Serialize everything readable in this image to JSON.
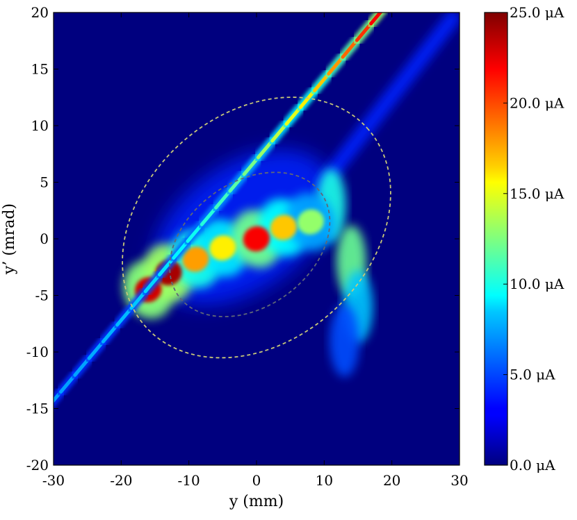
{
  "chart_data": {
    "type": "heatmap",
    "title": "",
    "xlabel": "y (mm)",
    "ylabel": "y’ (mrad)",
    "xlim": [
      -30,
      30
    ],
    "ylim": [
      -20,
      20
    ],
    "x_ticks": [
      "-30",
      "-20",
      "-10",
      "0",
      "10",
      "20",
      "30"
    ],
    "y_ticks": [
      "-20",
      "-15",
      "-10",
      "-5",
      "0",
      "5",
      "10",
      "15",
      "20"
    ],
    "colorbar": {
      "colormap": "jet",
      "range": [
        0,
        25
      ],
      "unit": "μA",
      "tick_labels": [
        "0.0 μA",
        "5.0 μA",
        "10.0 μA",
        "15.0 μA",
        "20.0 μA",
        "25.0 μA"
      ]
    },
    "background_value": 0,
    "features": {
      "steep_line": {
        "from": [
          -31,
          -15
        ],
        "to": [
          19,
          20.5
        ],
        "peak_value": 22,
        "base_value": 7
      },
      "faint_line": {
        "from": [
          10,
          5
        ],
        "to": [
          29,
          19.5
        ],
        "value": 4
      },
      "core_ridge": [
        {
          "x": -16,
          "y": -4.5,
          "value": 23
        },
        {
          "x": -13,
          "y": -3,
          "value": 24
        },
        {
          "x": -9,
          "y": -1.8,
          "value": 18
        },
        {
          "x": -5,
          "y": -0.8,
          "value": 16
        },
        {
          "x": 0,
          "y": 0,
          "value": 22
        },
        {
          "x": 4,
          "y": 1,
          "value": 17
        },
        {
          "x": 8,
          "y": 1.5,
          "value": 13
        }
      ],
      "right_tail": [
        {
          "x": 11,
          "y": 3,
          "value": 10
        },
        {
          "x": 14,
          "y": -2,
          "value": 12
        },
        {
          "x": 15,
          "y": -6,
          "value": 8
        },
        {
          "x": 13,
          "y": -9,
          "value": 5
        }
      ],
      "halo": {
        "center": [
          -2,
          1
        ],
        "value": 4
      }
    },
    "ellipses": [
      {
        "center": [
          0,
          1
        ],
        "semi_axes": [
          22,
          10
        ],
        "angle_deg": 42,
        "color": "#c8c878",
        "style": "dashed"
      },
      {
        "center": [
          -1,
          -0.5
        ],
        "semi_axes": [
          13,
          5.5
        ],
        "angle_deg": 36,
        "color": "#606878",
        "style": "dashed"
      }
    ]
  }
}
